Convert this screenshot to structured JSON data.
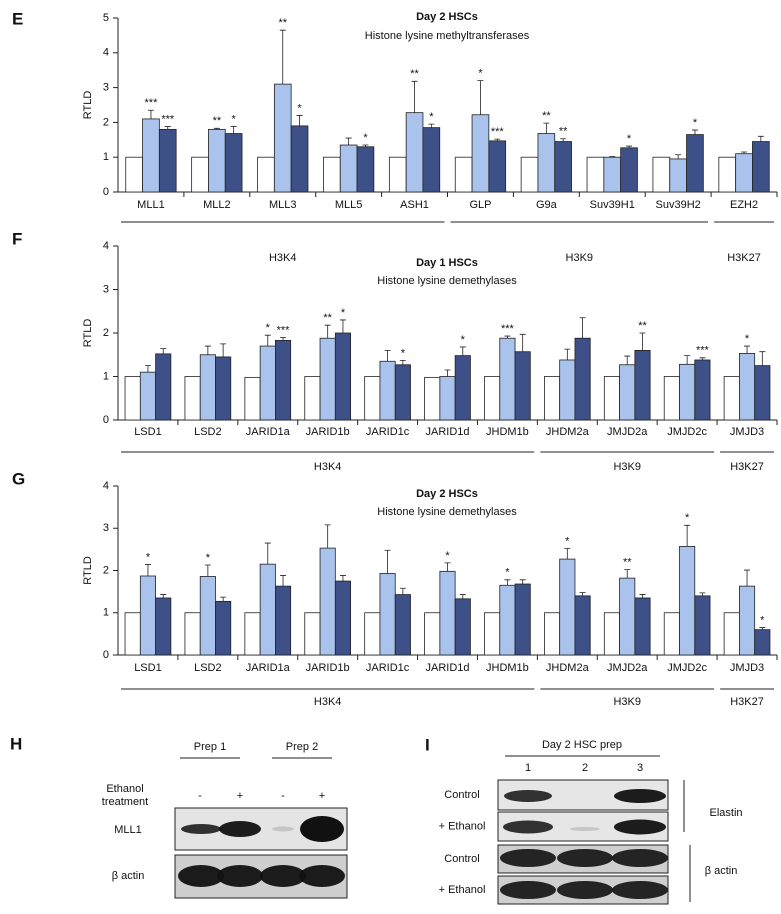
{
  "chart_data": [
    {
      "type": "bar",
      "panel": "E",
      "title": "Day 2 HSCs",
      "subtitle": "Histone lysine methyltransferases",
      "y_label": "RTLD",
      "groups": [
        {
          "label": "H3K4",
          "categories": [
            "MLL1",
            "MLL2",
            "MLL3",
            "MLL5",
            "ASH1"
          ]
        },
        {
          "label": "H3K9",
          "categories": [
            "GLP",
            "G9a",
            "Suv39H1",
            "Suv39H2"
          ]
        },
        {
          "label": "H3K27",
          "categories": [
            "EZH2"
          ]
        }
      ],
      "ylim": [
        0,
        5
      ],
      "yticks": [
        0,
        1,
        2,
        3,
        4,
        5
      ],
      "series": [
        {
          "color": "#ffffff",
          "values": [
            1,
            1,
            1,
            1,
            1,
            1,
            1,
            1,
            1,
            1
          ]
        },
        {
          "color": "#a9c3ec",
          "values": [
            2.1,
            1.8,
            3.1,
            1.35,
            2.28,
            2.22,
            1.68,
            1.0,
            0.95,
            1.1
          ],
          "errors": [
            0.25,
            0.03,
            1.55,
            0.2,
            0.9,
            0.98,
            0.3,
            0.02,
            0.12,
            0.05
          ],
          "annotations": [
            "***",
            "**",
            "**",
            null,
            "**",
            "*",
            "**",
            null,
            null,
            null
          ]
        },
        {
          "color": "#3d5088",
          "values": [
            1.8,
            1.68,
            1.9,
            1.3,
            1.85,
            1.47,
            1.45,
            1.27,
            1.65,
            1.45
          ],
          "errors": [
            0.08,
            0.2,
            0.3,
            0.05,
            0.1,
            0.05,
            0.08,
            0.05,
            0.13,
            0.15
          ],
          "annotations": [
            "***",
            "*",
            "*",
            "*",
            "*",
            "***",
            "**",
            "*",
            "*",
            null
          ]
        }
      ]
    },
    {
      "type": "bar",
      "panel": "F",
      "title": "Day 1 HSCs",
      "subtitle": "Histone lysine demethylases",
      "y_label": "RTLD",
      "groups": [
        {
          "label": "H3K4",
          "categories": [
            "LSD1",
            "LSD2",
            "JARID1a",
            "JARID1b",
            "JARID1c",
            "JARID1d",
            "JHDM1b"
          ]
        },
        {
          "label": "H3K9",
          "categories": [
            "JHDM2a",
            "JMJD2a",
            "JMJD2c"
          ]
        },
        {
          "label": "H3K27",
          "categories": [
            "JMJD3"
          ]
        }
      ],
      "ylim": [
        0,
        4
      ],
      "yticks": [
        0,
        1,
        2,
        3,
        4
      ],
      "series": [
        {
          "color": "#ffffff",
          "values": [
            1,
            1,
            0.98,
            1,
            1,
            0.98,
            1,
            1,
            1,
            1,
            1
          ]
        },
        {
          "color": "#a9c3ec",
          "values": [
            1.1,
            1.5,
            1.7,
            1.88,
            1.35,
            1.0,
            1.88,
            1.38,
            1.27,
            1.28,
            1.53
          ],
          "errors": [
            0.15,
            0.2,
            0.25,
            0.3,
            0.25,
            0.15,
            0.05,
            0.25,
            0.2,
            0.2,
            0.17
          ],
          "annotations": [
            null,
            null,
            "*",
            "**",
            null,
            null,
            "***",
            null,
            null,
            null,
            "*"
          ]
        },
        {
          "color": "#3d5088",
          "values": [
            1.52,
            1.45,
            1.83,
            2.0,
            1.27,
            1.48,
            1.57,
            1.88,
            1.6,
            1.38,
            1.25
          ],
          "errors": [
            0.12,
            0.3,
            0.07,
            0.3,
            0.1,
            0.2,
            0.4,
            0.47,
            0.4,
            0.05,
            0.32
          ],
          "annotations": [
            null,
            null,
            "***",
            "*",
            "*",
            "*",
            null,
            null,
            "**",
            "***",
            null
          ]
        }
      ]
    },
    {
      "type": "bar",
      "panel": "G",
      "title": "Day 2 HSCs",
      "subtitle": "Histone lysine demethylases",
      "y_label": "RTLD",
      "groups": [
        {
          "label": "H3K4",
          "categories": [
            "LSD1",
            "LSD2",
            "JARID1a",
            "JARID1b",
            "JARID1c",
            "JARID1d",
            "JHDM1b"
          ]
        },
        {
          "label": "H3K9",
          "categories": [
            "JHDM2a",
            "JMJD2a",
            "JMJD2c"
          ]
        },
        {
          "label": "H3K27",
          "categories": [
            "JMJD3"
          ]
        }
      ],
      "ylim": [
        0,
        4
      ],
      "yticks": [
        0,
        1,
        2,
        3,
        4
      ],
      "series": [
        {
          "color": "#ffffff",
          "values": [
            1,
            1,
            1,
            1,
            1,
            1,
            1,
            1,
            1,
            1,
            1
          ]
        },
        {
          "color": "#a9c3ec",
          "values": [
            1.87,
            1.86,
            2.15,
            2.53,
            1.93,
            1.98,
            1.65,
            2.27,
            1.82,
            2.57,
            1.63
          ],
          "errors": [
            0.27,
            0.27,
            0.5,
            0.55,
            0.55,
            0.2,
            0.13,
            0.25,
            0.2,
            0.5,
            0.38
          ],
          "annotations": [
            "*",
            "*",
            null,
            null,
            null,
            "*",
            "*",
            "*",
            "**",
            "*",
            null
          ]
        },
        {
          "color": "#3d5088",
          "values": [
            1.35,
            1.27,
            1.63,
            1.75,
            1.43,
            1.33,
            1.68,
            1.4,
            1.35,
            1.4,
            0.6
          ],
          "errors": [
            0.08,
            0.1,
            0.25,
            0.13,
            0.15,
            0.1,
            0.1,
            0.08,
            0.08,
            0.07,
            0.05
          ],
          "annotations": [
            null,
            null,
            null,
            null,
            null,
            null,
            null,
            null,
            null,
            null,
            "*"
          ]
        }
      ]
    }
  ],
  "blots": [
    {
      "panel": "H",
      "headers": [
        "Prep 1",
        "Prep 2"
      ],
      "row_title": [
        "Ethanol",
        "treatment"
      ],
      "treatment": [
        "-",
        "+",
        "-",
        "+"
      ],
      "rows": [
        "MLL1",
        "β actin"
      ]
    },
    {
      "panel": "I",
      "header": "Day 2 HSC prep",
      "lanes": [
        "1",
        "2",
        "3"
      ],
      "rows": [
        "Control",
        "+ Ethanol",
        "Control",
        "+ Ethanol"
      ],
      "groups": [
        "Elastin",
        "β actin"
      ]
    }
  ]
}
